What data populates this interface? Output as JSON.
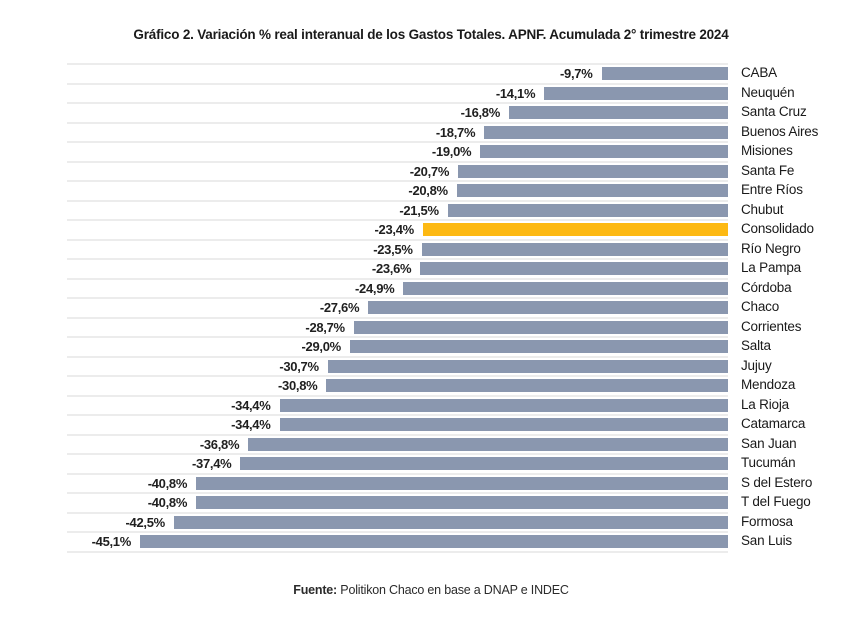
{
  "chart_data": {
    "type": "bar",
    "orientation": "horizontal",
    "title": "Gráfico 2. Variación % real interanual de los Gastos Totales. APNF. Acumulada 2° trimestre 2024",
    "source_prefix": "Fuente:",
    "source_text": " Politikon Chaco en base a DNAP e INDEC",
    "axis_display_max": 50.7,
    "zero_baseline": "right",
    "grid": "row-separator-lines",
    "bar_color": "#8A97AF",
    "highlight_color": "#FDB913",
    "highlight_category": "Consolidado",
    "categories": [
      "CABA",
      "Neuquén",
      "Santa Cruz",
      "Buenos Aires",
      "Misiones",
      "Santa Fe",
      "Entre Ríos",
      "Chubut",
      "Consolidado",
      "Río Negro",
      "La Pampa",
      "Córdoba",
      "Chaco",
      "Corrientes",
      "Salta",
      "Jujuy",
      "Mendoza",
      "La Rioja",
      "Catamarca",
      "San Juan",
      "Tucumán",
      "S del Estero",
      "T del Fuego",
      "Formosa",
      "San Luis"
    ],
    "values": [
      -9.7,
      -14.1,
      -16.8,
      -18.7,
      -19.0,
      -20.7,
      -20.8,
      -21.5,
      -23.4,
      -23.5,
      -23.6,
      -24.9,
      -27.6,
      -28.7,
      -29.0,
      -30.7,
      -30.8,
      -34.4,
      -34.4,
      -36.8,
      -37.4,
      -40.8,
      -40.8,
      -42.5,
      -45.1
    ],
    "value_labels": [
      "-9,7%",
      "-14,1%",
      "-16,8%",
      "-18,7%",
      "-19,0%",
      "-20,7%",
      "-20,8%",
      "-21,5%",
      "-23,4%",
      "-23,5%",
      "-23,6%",
      "-24,9%",
      "-27,6%",
      "-28,7%",
      "-29,0%",
      "-30,7%",
      "-30,8%",
      "-34,4%",
      "-34,4%",
      "-36,8%",
      "-37,4%",
      "-40,8%",
      "-40,8%",
      "-42,5%",
      "-45,1%"
    ]
  }
}
